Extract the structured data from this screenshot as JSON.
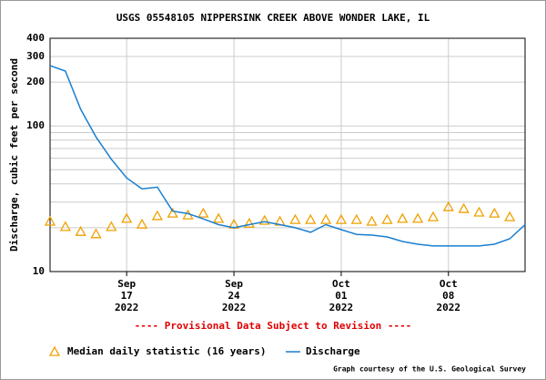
{
  "chart_data": {
    "type": "line",
    "title": "USGS 05548105 NIPPERSINK CREEK ABOVE WONDER LAKE, IL",
    "y_label": "Discharge, cubic feet per second",
    "note": "---- Provisional Data Subject to Revision ----",
    "credit": "Graph courtesy of the U.S. Geological Survey",
    "log_y": true,
    "grid": true,
    "xlim": [
      "2022-09-12",
      "2022-10-13"
    ],
    "xticks": [
      {
        "value": "2022-09-17",
        "label": [
          "Sep",
          "17",
          "2022"
        ]
      },
      {
        "value": "2022-09-24",
        "label": [
          "Sep",
          "24",
          "2022"
        ]
      },
      {
        "value": "2022-10-01",
        "label": [
          "Oct",
          "01",
          "2022"
        ]
      },
      {
        "value": "2022-10-08",
        "label": [
          "Oct",
          "08",
          "2022"
        ]
      }
    ],
    "ylim": [
      10,
      400
    ],
    "yticks": [
      10,
      100,
      200,
      300,
      400
    ],
    "minor_yticks": [
      20,
      30,
      40,
      50,
      60,
      70,
      80,
      90
    ],
    "series": [
      {
        "name": "Median daily statistic (16 years)",
        "kind": "triangle",
        "color": "#f0a000",
        "x": [
          "2022-09-12",
          "2022-09-13",
          "2022-09-14",
          "2022-09-15",
          "2022-09-16",
          "2022-09-17",
          "2022-09-18",
          "2022-09-19",
          "2022-09-20",
          "2022-09-21",
          "2022-09-22",
          "2022-09-23",
          "2022-09-24",
          "2022-09-25",
          "2022-09-26",
          "2022-09-27",
          "2022-09-28",
          "2022-09-29",
          "2022-09-30",
          "2022-10-01",
          "2022-10-02",
          "2022-10-03",
          "2022-10-04",
          "2022-10-05",
          "2022-10-06",
          "2022-10-07",
          "2022-10-08",
          "2022-10-09",
          "2022-10-10",
          "2022-10-11",
          "2022-10-12"
        ],
        "values": [
          22.1,
          20.3,
          18.8,
          18.1,
          20.3,
          23.1,
          21.1,
          24.1,
          25.1,
          24.4,
          25.1,
          23.1,
          21.1,
          21.4,
          22.4,
          22.1,
          22.7,
          22.7,
          22.7,
          22.7,
          22.7,
          22.1,
          22.7,
          23.1,
          23.1,
          23.7,
          27.8,
          27.0,
          25.5,
          25.1,
          23.7
        ]
      },
      {
        "name": "Discharge",
        "kind": "line",
        "color": "#1a7fd0",
        "x": [
          "2022-09-12",
          "2022-09-13",
          "2022-09-14",
          "2022-09-15",
          "2022-09-16",
          "2022-09-17",
          "2022-09-18",
          "2022-09-19",
          "2022-09-20",
          "2022-09-21",
          "2022-09-22",
          "2022-09-23",
          "2022-09-24",
          "2022-09-25",
          "2022-09-26",
          "2022-09-27",
          "2022-09-28",
          "2022-09-29",
          "2022-09-30",
          "2022-10-01",
          "2022-10-02",
          "2022-10-03",
          "2022-10-04",
          "2022-10-05",
          "2022-10-06",
          "2022-10-07",
          "2022-10-08",
          "2022-10-09",
          "2022-10-10",
          "2022-10-11",
          "2022-10-12",
          "2022-10-13"
        ],
        "values": [
          260,
          238,
          130,
          84,
          59,
          44,
          37,
          38,
          26,
          25,
          23,
          21,
          20,
          21,
          22,
          21,
          20,
          18.6,
          21,
          19.4,
          18,
          17.8,
          17.3,
          16.1,
          15.4,
          15,
          15,
          15,
          15,
          15.4,
          16.8,
          21
        ]
      }
    ]
  }
}
